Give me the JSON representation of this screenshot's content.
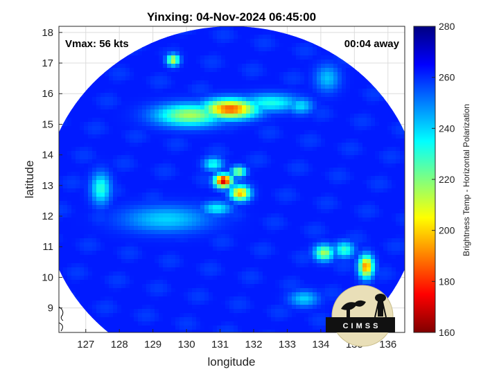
{
  "chart_data": {
    "type": "heatmap",
    "title": "Yinxing: 04-Nov-2024 06:45:00",
    "xlabel": "longitude",
    "ylabel": "latitude",
    "xlim": [
      126.2,
      136.5
    ],
    "ylim": [
      8.2,
      18.2
    ],
    "xticks": [
      127,
      128,
      129,
      130,
      131,
      132,
      133,
      134,
      135,
      136
    ],
    "yticks": [
      9,
      10,
      11,
      12,
      13,
      14,
      15,
      16,
      17,
      18
    ],
    "grid": true,
    "vmax_label": "Vmax: 56 kts",
    "time_offset_label": "00:04 away",
    "colorbar": {
      "label": "Brightness Temp - Horizontal Polarization",
      "range": [
        160,
        280
      ],
      "ticks": [
        160,
        180,
        200,
        220,
        240,
        260,
        280
      ],
      "colormap": "jet"
    },
    "swath": {
      "center_lon": 131.35,
      "center_lat": 12.5,
      "radius_lon": 5.6,
      "radius_lat": 5.7,
      "background_temp": 262
    },
    "features": [
      {
        "name": "northern rainband",
        "lon": 131.3,
        "lat": 15.5,
        "sigma_lon": 0.55,
        "sigma_lat": 0.22,
        "temp": 185
      },
      {
        "name": "northern rainband west",
        "lon": 130.1,
        "lat": 15.3,
        "sigma_lon": 0.7,
        "sigma_lat": 0.25,
        "temp": 215
      },
      {
        "name": "northern rainband east",
        "lon": 132.5,
        "lat": 15.7,
        "sigma_lon": 0.6,
        "sigma_lat": 0.2,
        "temp": 232
      },
      {
        "name": "rainband tail",
        "lon": 133.4,
        "lat": 15.6,
        "sigma_lon": 0.25,
        "sigma_lat": 0.18,
        "temp": 238
      },
      {
        "name": "eyewall west",
        "lon": 131.1,
        "lat": 13.15,
        "sigma_lon": 0.18,
        "sigma_lat": 0.15,
        "temp": 168
      },
      {
        "name": "eyewall southeast",
        "lon": 131.6,
        "lat": 12.75,
        "sigma_lon": 0.2,
        "sigma_lat": 0.17,
        "temp": 195
      },
      {
        "name": "eyewall northeast",
        "lon": 131.55,
        "lat": 13.45,
        "sigma_lon": 0.15,
        "sigma_lat": 0.12,
        "temp": 215
      },
      {
        "name": "eyewall north",
        "lon": 130.8,
        "lat": 13.7,
        "sigma_lon": 0.2,
        "sigma_lat": 0.15,
        "temp": 232
      },
      {
        "name": "inner band south",
        "lon": 130.9,
        "lat": 12.25,
        "sigma_lon": 0.3,
        "sigma_lat": 0.15,
        "temp": 235
      },
      {
        "name": "southwest band",
        "lon": 129.4,
        "lat": 11.9,
        "sigma_lon": 0.9,
        "sigma_lat": 0.3,
        "temp": 240
      },
      {
        "name": "west cell",
        "lon": 127.45,
        "lat": 12.9,
        "sigma_lon": 0.2,
        "sigma_lat": 0.35,
        "temp": 230
      },
      {
        "name": "north cell",
        "lon": 129.6,
        "lat": 17.1,
        "sigma_lon": 0.13,
        "sigma_lat": 0.13,
        "temp": 210
      },
      {
        "name": "east cell",
        "lon": 135.35,
        "lat": 10.35,
        "sigma_lon": 0.15,
        "sigma_lat": 0.25,
        "temp": 190
      },
      {
        "name": "southeast cell",
        "lon": 134.1,
        "lat": 10.8,
        "sigma_lon": 0.2,
        "sigma_lat": 0.18,
        "temp": 215
      },
      {
        "name": "southeast cell 2",
        "lon": 134.7,
        "lat": 10.9,
        "sigma_lon": 0.2,
        "sigma_lat": 0.18,
        "temp": 228
      },
      {
        "name": "southeast cluster",
        "lon": 133.5,
        "lat": 9.3,
        "sigma_lon": 0.3,
        "sigma_lat": 0.18,
        "temp": 240
      },
      {
        "name": "northeast cells",
        "lon": 134.2,
        "lat": 16.5,
        "sigma_lon": 0.25,
        "sigma_lat": 0.3,
        "temp": 242
      }
    ],
    "logo": {
      "text": "CIMSS"
    }
  }
}
